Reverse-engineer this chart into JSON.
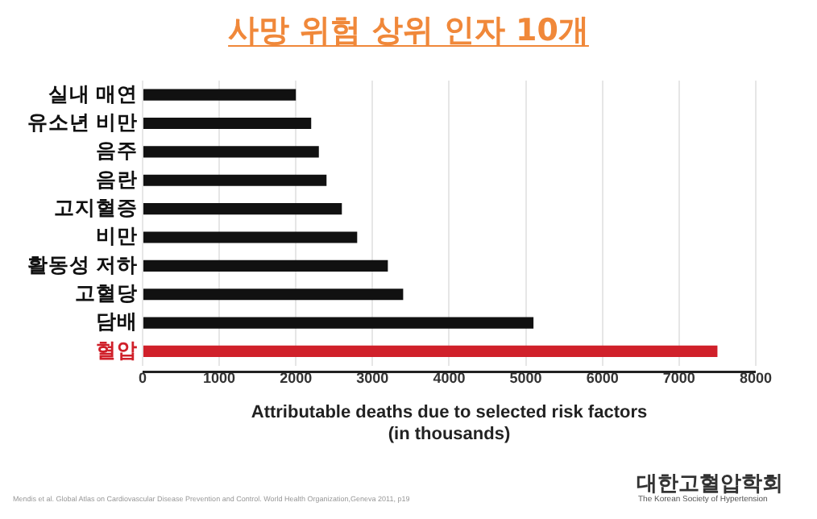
{
  "chart_data": {
    "type": "bar",
    "orientation": "horizontal",
    "title": "사망 위험 상위 인자 10개",
    "xlabel": "Attributable deaths due to selected risk factors\n(in thousands)",
    "categories": [
      "실내 매연",
      "유소년 비만",
      "음주",
      "음란",
      "고지혈증",
      "비만",
      "활동성 저하",
      "고혈당",
      "담배",
      "혈압"
    ],
    "values": [
      2000,
      2200,
      2300,
      2400,
      2600,
      2800,
      3200,
      3400,
      5100,
      7500
    ],
    "colors": [
      "#111111",
      "#111111",
      "#111111",
      "#111111",
      "#111111",
      "#111111",
      "#111111",
      "#111111",
      "#111111",
      "#d0202a"
    ],
    "xlim": [
      0,
      8000
    ],
    "xticks": [
      0,
      1000,
      2000,
      3000,
      4000,
      5000,
      6000,
      7000,
      8000
    ],
    "grid": "x",
    "legend": false,
    "annotations": [
      "Mendis et al. Global Atlas on Cardiovascular Disease Prevention and Control. World Health Organization,Geneva 2011, p19",
      "대한고혈압학회",
      "The Korean Society of Hypertension"
    ]
  }
}
